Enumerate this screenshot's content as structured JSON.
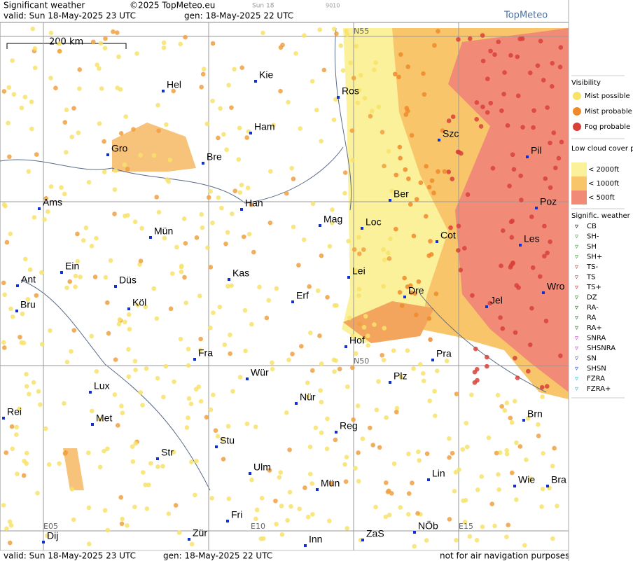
{
  "header": {
    "title": "Significant weather",
    "copyright": "©2025 TopMeteo.eu",
    "day": "Sun 18",
    "code": "9010",
    "valid": "valid:  Sun  18-May-2025  23 UTC",
    "generated": "gen: 18-May-2025 22 UTC",
    "brand": "TopMeteo"
  },
  "map": {
    "scale_label": "200 km",
    "grid_labels": [
      "N55",
      "N50",
      "E05",
      "E10",
      "E15"
    ],
    "cities": [
      "Hel",
      "Kie",
      "Ros",
      "Ham",
      "Szc",
      "Gro",
      "Bre",
      "Pil",
      "Ber",
      "Ams",
      "Han",
      "Poz",
      "Mag",
      "Loc",
      "Mün",
      "Cot",
      "Les",
      "Ein",
      "Kas",
      "Lei",
      "Ant",
      "Düs",
      "Dre",
      "Wro",
      "Erf",
      "Jel",
      "Bru",
      "Köl",
      "Hof",
      "Fra",
      "Pra",
      "Wür",
      "Plz",
      "Lux",
      "Nür",
      "Rei",
      "Met",
      "Reg",
      "Brn",
      "Stu",
      "Str",
      "Lin",
      "Ulm",
      "Wie",
      "Bra",
      "Mün",
      "Fri",
      "NÖb",
      "Dij",
      "Zür",
      "Inn",
      "ZaS"
    ]
  },
  "legend": {
    "visibility_title": "Visibility",
    "visibility": [
      "Mist possible",
      "Mist probable",
      "Fog probable"
    ],
    "cloud_title": "Low cloud cover probable",
    "cloud": [
      "< 2000ft",
      "< 1000ft",
      "<  500ft"
    ],
    "weather_title": "Signific. weather",
    "weather": [
      "CB",
      "SH-",
      "SH",
      "SH+",
      "TS-",
      "TS",
      "TS+",
      "DZ",
      "RA-",
      "RA",
      "RA+",
      "SNRA",
      "SHSNRA",
      "SN",
      "SHSN",
      "FZRA",
      "FZRA+"
    ]
  },
  "footer": {
    "valid": "valid:  Sun  18-May-2025  23 UTC",
    "generated": "gen: 18-May-2025 22 UTC",
    "note": "not for air navigation purposes"
  }
}
